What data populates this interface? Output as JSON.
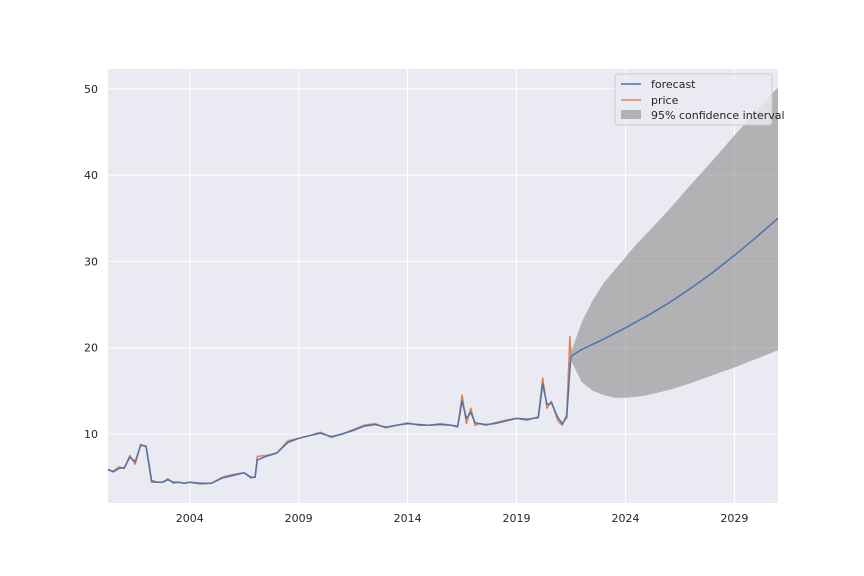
{
  "chart_data": {
    "type": "line",
    "title": "",
    "xlabel": "",
    "ylabel": "",
    "xlim": [
      2000.25,
      2031.0
    ],
    "ylim": [
      2.0,
      52.3
    ],
    "x_ticks": [
      2004,
      2009,
      2014,
      2019,
      2024,
      2029
    ],
    "x_tick_labels": [
      "2004",
      "2009",
      "2014",
      "2019",
      "2024",
      "2029"
    ],
    "y_ticks": [
      10,
      20,
      30,
      40,
      50
    ],
    "y_tick_labels": [
      "10",
      "20",
      "30",
      "40",
      "50"
    ],
    "grid": true,
    "legend_position": "top-right",
    "legend": [
      {
        "label": "forecast",
        "kind": "line",
        "color": "#4c72b0"
      },
      {
        "label": "price",
        "kind": "line",
        "color": "#dd8452"
      },
      {
        "label": "95% confidence interval",
        "kind": "patch",
        "color": "#8c8c8c"
      }
    ],
    "colors": {
      "plot_background": "#eaeaf2",
      "grid": "#ffffff",
      "forecast": "#4c72b0",
      "price": "#dd8452",
      "band": "#8c8c8c"
    },
    "series": [
      {
        "name": "price",
        "x": [
          2000.25,
          2000.5,
          2000.75,
          2001.0,
          2001.25,
          2001.5,
          2001.75,
          2002.0,
          2002.25,
          2002.5,
          2002.75,
          2003.0,
          2003.25,
          2003.5,
          2003.75,
          2004.0,
          2004.5,
          2005.0,
          2005.5,
          2006.0,
          2006.5,
          2006.8,
          2007.0,
          2007.1,
          2007.5,
          2008.0,
          2008.5,
          2009.0,
          2009.5,
          2010.0,
          2010.5,
          2011.0,
          2011.5,
          2012.0,
          2012.5,
          2013.0,
          2013.5,
          2014.0,
          2014.5,
          2015.0,
          2015.5,
          2016.0,
          2016.3,
          2016.5,
          2016.7,
          2016.9,
          2017.1,
          2017.3,
          2017.6,
          2018.0,
          2018.5,
          2019.0,
          2019.5,
          2020.0,
          2020.2,
          2020.4,
          2020.6,
          2020.9,
          2021.1,
          2021.3,
          2021.45,
          2021.5
        ],
        "values": [
          5.8,
          5.7,
          6.2,
          6.0,
          7.5,
          6.5,
          8.8,
          8.5,
          4.4,
          4.4,
          4.4,
          4.8,
          4.3,
          4.4,
          4.3,
          4.4,
          4.2,
          4.3,
          5.0,
          5.3,
          5.5,
          4.9,
          5.0,
          7.4,
          7.5,
          7.8,
          9.2,
          9.5,
          9.8,
          10.2,
          9.6,
          10.0,
          10.5,
          11.0,
          11.2,
          10.7,
          11.0,
          11.3,
          11.0,
          11.0,
          11.2,
          11.0,
          10.8,
          14.5,
          11.2,
          13.0,
          11.0,
          11.2,
          11.0,
          11.3,
          11.6,
          11.8,
          11.6,
          12.0,
          16.5,
          13.0,
          13.8,
          11.5,
          11.0,
          12.3,
          21.3,
          19.0
        ]
      },
      {
        "name": "forecast",
        "x": [
          2000.25,
          2000.5,
          2000.75,
          2001.0,
          2001.25,
          2001.5,
          2001.75,
          2002.0,
          2002.25,
          2002.5,
          2002.75,
          2003.0,
          2003.25,
          2003.5,
          2003.75,
          2004.0,
          2004.5,
          2005.0,
          2005.5,
          2006.0,
          2006.5,
          2006.8,
          2007.0,
          2007.1,
          2007.5,
          2008.0,
          2008.5,
          2009.0,
          2009.5,
          2010.0,
          2010.5,
          2011.0,
          2011.5,
          2012.0,
          2012.5,
          2013.0,
          2013.5,
          2014.0,
          2014.5,
          2015.0,
          2015.5,
          2016.0,
          2016.3,
          2016.5,
          2016.7,
          2016.9,
          2017.1,
          2017.3,
          2017.6,
          2018.0,
          2018.5,
          2019.0,
          2019.5,
          2020.0,
          2020.2,
          2020.4,
          2020.6,
          2020.9,
          2021.1,
          2021.3,
          2021.45,
          2021.5,
          2022.0,
          2023.0,
          2024.0,
          2025.0,
          2026.0,
          2027.0,
          2028.0,
          2029.0,
          2030.0,
          2031.0
        ],
        "values": [
          5.9,
          5.6,
          6.0,
          6.1,
          7.3,
          6.8,
          8.7,
          8.6,
          4.6,
          4.4,
          4.4,
          4.7,
          4.4,
          4.4,
          4.3,
          4.4,
          4.3,
          4.3,
          4.9,
          5.2,
          5.5,
          5.0,
          5.0,
          7.0,
          7.4,
          7.8,
          9.0,
          9.5,
          9.8,
          10.1,
          9.7,
          10.0,
          10.4,
          10.9,
          11.1,
          10.8,
          11.0,
          11.2,
          11.1,
          11.0,
          11.1,
          11.0,
          10.9,
          13.8,
          11.8,
          12.5,
          11.3,
          11.2,
          11.1,
          11.2,
          11.5,
          11.8,
          11.7,
          11.9,
          15.8,
          13.4,
          13.6,
          11.9,
          11.2,
          11.9,
          17.5,
          19.0,
          19.8,
          21.0,
          22.3,
          23.7,
          25.2,
          26.9,
          28.7,
          30.7,
          32.8,
          35.0
        ]
      }
    ],
    "confidence_band": {
      "name": "95% confidence interval",
      "x": [
        2021.5,
        2022.0,
        2022.5,
        2023.0,
        2023.5,
        2024.0,
        2024.5,
        2025.0,
        2026.0,
        2027.0,
        2028.0,
        2029.0,
        2030.0,
        2031.0
      ],
      "lower": [
        18.5,
        16.0,
        15.0,
        14.5,
        14.2,
        14.2,
        14.3,
        14.5,
        15.1,
        15.9,
        16.8,
        17.7,
        18.7,
        19.7
      ],
      "upper": [
        19.5,
        23.0,
        25.5,
        27.5,
        29.0,
        30.5,
        32.0,
        33.3,
        36.0,
        38.9,
        41.7,
        44.6,
        47.4,
        50.2
      ]
    }
  }
}
